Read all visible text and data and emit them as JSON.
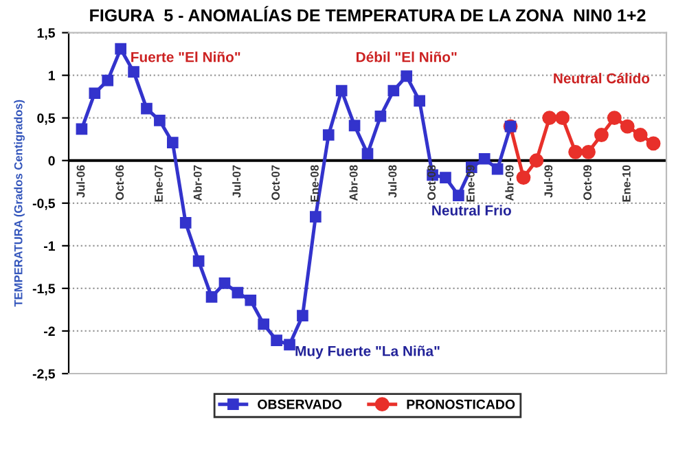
{
  "chart_data": {
    "type": "line",
    "title": "FIGURA  5 - ANOMALÍAS DE TEMPERATURA DE LA ZONA  NIN0 1+2",
    "ylabel": "TEMPERATURA (Grados Centigrados)",
    "categories": [
      "Jul-06",
      null,
      null,
      "Oct-06",
      null,
      null,
      "Ene-07",
      null,
      null,
      "Abr-07",
      null,
      null,
      "Jul-07",
      null,
      null,
      "Oct-07",
      null,
      null,
      "Ene-08",
      null,
      null,
      "Abr-08",
      null,
      null,
      "Jul-08",
      null,
      null,
      "Oct-08",
      null,
      null,
      "Ene-09",
      null,
      null,
      "Abr-09",
      null,
      null,
      "Jul-09",
      null,
      null,
      "Oct-09",
      null,
      null,
      "Ene-10",
      null,
      null
    ],
    "series": [
      {
        "name": "OBSERVADO",
        "color": "#3333cc",
        "marker": "square",
        "values": [
          0.37,
          0.79,
          0.94,
          1.31,
          1.04,
          0.61,
          0.47,
          0.21,
          -0.73,
          -1.18,
          -1.6,
          -1.44,
          -1.55,
          -1.64,
          -1.92,
          -2.11,
          -2.16,
          -1.82,
          -0.66,
          0.3,
          0.82,
          0.41,
          0.08,
          0.52,
          0.82,
          0.99,
          0.7,
          -0.17,
          -0.2,
          -0.41,
          -0.08,
          0.02,
          -0.1,
          0.4,
          null,
          null,
          null,
          null,
          null,
          null,
          null,
          null,
          null,
          null,
          null
        ]
      },
      {
        "name": "PRONOSTICADO",
        "color": "#e8302a",
        "marker": "circle",
        "values": [
          null,
          null,
          null,
          null,
          null,
          null,
          null,
          null,
          null,
          null,
          null,
          null,
          null,
          null,
          null,
          null,
          null,
          null,
          null,
          null,
          null,
          null,
          null,
          null,
          null,
          null,
          null,
          null,
          null,
          null,
          null,
          null,
          null,
          0.4,
          -0.2,
          0.0,
          0.5,
          0.5,
          0.1,
          0.1,
          0.3,
          0.5,
          0.4,
          0.3,
          0.2
        ]
      }
    ],
    "ylim": [
      -2.5,
      1.5
    ],
    "yticks": [
      {
        "value": -2.5,
        "label": "-2,5"
      },
      {
        "value": -2,
        "label": "-2"
      },
      {
        "value": -1.5,
        "label": "-1,5"
      },
      {
        "value": -1,
        "label": "-1"
      },
      {
        "value": -0.5,
        "label": "-0,5"
      },
      {
        "value": 0,
        "label": "0"
      },
      {
        "value": 0.5,
        "label": "0,5"
      },
      {
        "value": 1,
        "label": "1"
      },
      {
        "value": 1.5,
        "label": "1,5"
      }
    ],
    "annotations": [
      "Fuerte \"El Niño\"",
      "Débil \"El Niño\"",
      "Neutral Cálido",
      "Neutral Frio",
      "Muy Fuerte \"La Niña\""
    ],
    "grid": "y",
    "legend": "bottom",
    "line_style": "solid"
  }
}
